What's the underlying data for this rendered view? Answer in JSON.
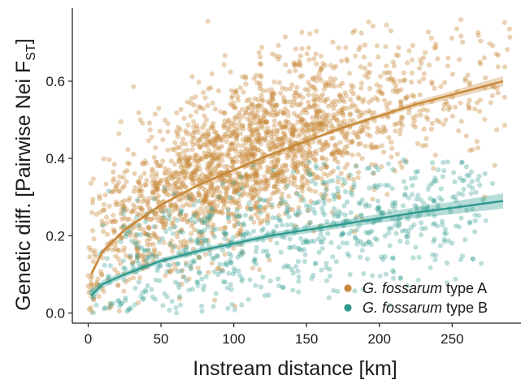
{
  "chart_data": {
    "type": "scatter",
    "title": "",
    "xlabel": "Instream distance [km]",
    "ylabel": {
      "main": "Genetic diff. [Pairwise Nei F",
      "subscript": "ST",
      "close": "]"
    },
    "xlim": [
      -8,
      292
    ],
    "ylim": [
      -0.025,
      0.785
    ],
    "xticks": [
      0,
      50,
      100,
      150,
      200,
      250
    ],
    "yticks": [
      0.0,
      0.2,
      0.4,
      0.6
    ],
    "ytick_labels": [
      "0.0",
      "0.2",
      "0.4",
      "0.6"
    ],
    "grid": false,
    "legend_position": "bottom-right",
    "colors": {
      "type_a": "#c8893a",
      "type_b": "#2e9a8e"
    },
    "series": [
      {
        "name_italic": "G. fossarum",
        "name_suffix": " type A",
        "kind": "scatter-with-fit",
        "point_count_approx": 2200,
        "x_range": [
          0,
          290
        ],
        "y_range": [
          0.0,
          0.76
        ],
        "fit": {
          "x": [
            2,
            10,
            25,
            50,
            75,
            100,
            125,
            150,
            175,
            200,
            225,
            250,
            285
          ],
          "y": [
            0.1,
            0.16,
            0.215,
            0.28,
            0.33,
            0.37,
            0.41,
            0.445,
            0.48,
            0.51,
            0.54,
            0.565,
            0.6
          ]
        },
        "ci_halfwidth": [
          0.01,
          0.006,
          0.005,
          0.004,
          0.004,
          0.004,
          0.004,
          0.004,
          0.005,
          0.006,
          0.008,
          0.01,
          0.013
        ]
      },
      {
        "name_italic": "G. fossarum",
        "name_suffix": " type B",
        "kind": "scatter-with-fit",
        "point_count_approx": 750,
        "x_range": [
          0,
          280
        ],
        "y_range": [
          0.0,
          0.4
        ],
        "fit": {
          "x": [
            2,
            10,
            25,
            50,
            75,
            100,
            125,
            150,
            175,
            200,
            225,
            250,
            285
          ],
          "y": [
            0.045,
            0.075,
            0.1,
            0.135,
            0.16,
            0.18,
            0.2,
            0.215,
            0.23,
            0.245,
            0.26,
            0.272,
            0.29
          ]
        },
        "ci_halfwidth": [
          0.015,
          0.01,
          0.008,
          0.007,
          0.007,
          0.007,
          0.008,
          0.009,
          0.01,
          0.012,
          0.014,
          0.016,
          0.02
        ]
      }
    ]
  }
}
